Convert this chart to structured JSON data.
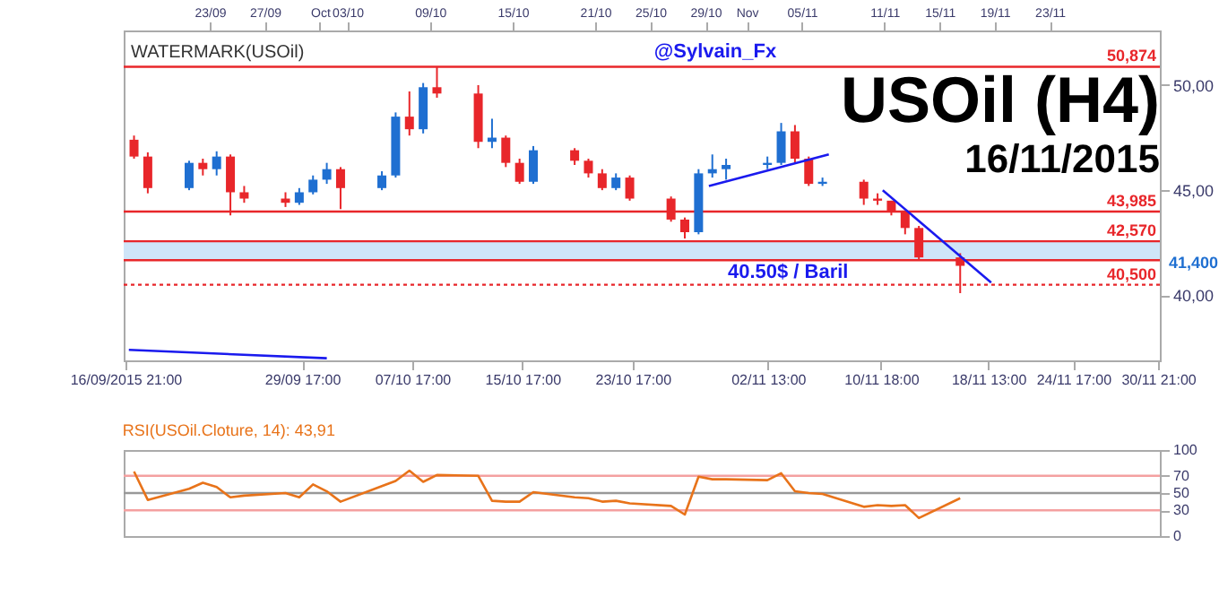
{
  "chart_data": [
    {
      "type": "candlestick",
      "title": "USOil (H4)",
      "subtitle": "16/11/2015",
      "annotations": [
        "WATERMARK(USOil)",
        "@Sylvain_Fx",
        "41,400",
        {
          "text": "40.50$ / Baril",
          "x": "2015-11-04T00:00",
          "y": 40.5
        }
      ],
      "x": [
        "2015-09-17T12:00",
        "2015-09-18T12:00",
        "2015-09-21T12:00",
        "2015-09-22T12:00",
        "2015-09-23T12:00",
        "2015-09-24T12:00",
        "2015-09-25T12:00",
        "2015-09-28T12:00",
        "2015-09-29T12:00",
        "2015-09-30T12:00",
        "2015-10-01T12:00",
        "2015-10-02T12:00",
        "2015-10-05T12:00",
        "2015-10-06T12:00",
        "2015-10-07T12:00",
        "2015-10-08T12:00",
        "2015-10-09T12:00",
        "2015-10-12T12:00",
        "2015-10-13T12:00",
        "2015-10-14T12:00",
        "2015-10-15T12:00",
        "2015-10-16T12:00",
        "2015-10-19T12:00",
        "2015-10-20T12:00",
        "2015-10-21T12:00",
        "2015-10-22T12:00",
        "2015-10-23T12:00",
        "2015-10-26T12:00",
        "2015-10-27T12:00",
        "2015-10-28T12:00",
        "2015-10-29T12:00",
        "2015-10-30T12:00",
        "2015-11-02T12:00",
        "2015-11-03T12:00",
        "2015-11-04T12:00",
        "2015-11-05T12:00",
        "2015-11-06T12:00",
        "2015-11-09T12:00",
        "2015-11-10T12:00",
        "2015-11-11T12:00",
        "2015-11-12T12:00",
        "2015-11-13T12:00",
        "2015-11-16T12:00"
      ],
      "ohlc": [
        [
          47.4,
          47.6,
          46.5,
          46.6
        ],
        [
          46.6,
          46.8,
          44.85,
          45.1
        ],
        [
          45.1,
          46.4,
          45.0,
          46.3
        ],
        [
          46.3,
          46.5,
          45.7,
          46.0
        ],
        [
          46.0,
          46.85,
          45.7,
          46.6
        ],
        [
          46.6,
          46.7,
          43.8,
          44.9
        ],
        [
          44.9,
          45.2,
          44.4,
          44.6
        ],
        [
          44.6,
          44.9,
          44.2,
          44.4
        ],
        [
          44.4,
          45.1,
          44.3,
          44.9
        ],
        [
          44.9,
          45.7,
          44.8,
          45.5
        ],
        [
          45.5,
          46.3,
          45.3,
          46.0
        ],
        [
          46.0,
          46.1,
          44.1,
          45.1
        ],
        [
          45.1,
          45.9,
          45.0,
          45.7
        ],
        [
          45.7,
          48.7,
          45.6,
          48.5
        ],
        [
          48.5,
          49.7,
          47.6,
          47.9
        ],
        [
          47.9,
          50.1,
          47.7,
          49.9
        ],
        [
          49.9,
          50.87,
          49.4,
          49.6
        ],
        [
          49.6,
          50.0,
          47.0,
          47.3
        ],
        [
          47.3,
          48.4,
          47.0,
          47.5
        ],
        [
          47.5,
          47.6,
          46.1,
          46.3
        ],
        [
          46.3,
          46.5,
          45.3,
          45.4
        ],
        [
          45.4,
          47.1,
          45.3,
          46.9
        ],
        [
          46.9,
          47.0,
          46.2,
          46.4
        ],
        [
          46.4,
          46.5,
          45.6,
          45.8
        ],
        [
          45.8,
          46.0,
          45.0,
          45.1
        ],
        [
          45.1,
          45.8,
          45.0,
          45.6
        ],
        [
          45.6,
          45.7,
          44.5,
          44.6
        ],
        [
          44.6,
          44.7,
          43.5,
          43.6
        ],
        [
          43.6,
          43.7,
          42.7,
          43.0
        ],
        [
          43.0,
          46.0,
          42.9,
          45.8
        ],
        [
          45.8,
          46.7,
          45.6,
          46.0
        ],
        [
          46.0,
          46.5,
          45.5,
          46.2
        ],
        [
          46.2,
          46.6,
          46.0,
          46.3
        ],
        [
          46.3,
          48.2,
          46.2,
          47.8
        ],
        [
          47.8,
          48.1,
          46.3,
          46.5
        ],
        [
          46.5,
          46.6,
          45.2,
          45.3
        ],
        [
          45.3,
          45.6,
          45.2,
          45.4
        ],
        [
          45.4,
          45.5,
          44.3,
          44.6
        ],
        [
          44.6,
          44.85,
          44.3,
          44.5
        ],
        [
          44.5,
          44.5,
          43.8,
          44.0
        ],
        [
          44.0,
          44.0,
          42.9,
          43.2
        ],
        [
          43.2,
          43.3,
          41.7,
          41.8
        ],
        [
          41.8,
          42.0,
          40.1,
          41.4
        ]
      ],
      "series": [
        {
          "type": "line",
          "color": "#1a1aee",
          "x": [
            "2015-10-29T06:00",
            "2015-11-06T23:00"
          ],
          "values": [
            45.2,
            46.7
          ]
        },
        {
          "type": "line",
          "color": "#1a1aee",
          "x": [
            "2015-11-10T21:00",
            "2015-11-18T18:00"
          ],
          "values": [
            45.0,
            40.6
          ]
        },
        {
          "type": "line",
          "color": "#1a1aee",
          "x": [
            "2015-09-17T03:00",
            "2015-10-01T12:00"
          ],
          "values": [
            37.4,
            37.0
          ]
        }
      ],
      "xlim": [
        "2015-09-16T18:00",
        "2015-12-01T00:00"
      ],
      "xticks": [
        {
          "value": "2015-09-16T21:00",
          "label": "16/09/2015 21:00"
        },
        {
          "value": "2015-09-29T17:00",
          "label": "29/09 17:00"
        },
        {
          "value": "2015-10-07T17:00",
          "label": "07/10 17:00"
        },
        {
          "value": "2015-10-15T17:00",
          "label": "15/10 17:00"
        },
        {
          "value": "2015-10-23T17:00",
          "label": "23/10 17:00"
        },
        {
          "value": "2015-11-02T13:00",
          "label": "02/11 13:00"
        },
        {
          "value": "2015-11-10T18:00",
          "label": "10/11 18:00"
        },
        {
          "value": "2015-11-18T13:00",
          "label": "18/11 13:00"
        },
        {
          "value": "2015-11-24T17:00",
          "label": "24/11 17:00"
        },
        {
          "value": "2015-11-30T21:00",
          "label": "30/11 21:00"
        }
      ],
      "x2lim": [
        "2015-09-16T18:00",
        "2015-12-01T00:00"
      ],
      "x2ticks": [
        {
          "value": "2015-09-23T00:00",
          "label": "23/09"
        },
        {
          "value": "2015-09-27T00:00",
          "label": "27/09"
        },
        {
          "value": "2015-10-01T00:00",
          "label": "Oct"
        },
        {
          "value": "2015-10-03T00:00",
          "label": "03/10"
        },
        {
          "value": "2015-10-09T00:00",
          "label": "09/10"
        },
        {
          "value": "2015-10-15T00:00",
          "label": "15/10"
        },
        {
          "value": "2015-10-21T00:00",
          "label": "21/10"
        },
        {
          "value": "2015-10-25T00:00",
          "label": "25/10"
        },
        {
          "value": "2015-10-29T00:00",
          "label": "29/10"
        },
        {
          "value": "2015-11-01T00:00",
          "label": "Nov"
        },
        {
          "value": "2015-11-05T00:00",
          "label": "05/11"
        },
        {
          "value": "2015-11-11T00:00",
          "label": "11/11"
        },
        {
          "value": "2015-11-15T00:00",
          "label": "15/11"
        },
        {
          "value": "2015-11-19T00:00",
          "label": "19/11"
        },
        {
          "value": "2015-11-23T00:00",
          "label": "23/11"
        }
      ],
      "ylim": [
        36.9,
        52.6
      ],
      "yticks": [
        {
          "value": 40,
          "label": "40,00"
        },
        {
          "value": 45,
          "label": "45,00"
        },
        {
          "value": 50,
          "label": "50,00"
        }
      ],
      "ref_lines": [
        {
          "axis": "y",
          "value": 50.874,
          "label": "50,874",
          "color": "#e8262a"
        },
        {
          "axis": "y",
          "value": 43.985,
          "label": "43,985",
          "color": "#e8262a"
        },
        {
          "axis": "y",
          "value": 42.57,
          "label": "42,570",
          "color": "#e8262a"
        },
        {
          "axis": "y",
          "value": 41.67,
          "label": null,
          "color": "#e8262a"
        },
        {
          "axis": "y",
          "value": 40.5,
          "label": "40,500",
          "color": "#e8262a",
          "line_style": "dotted"
        }
      ],
      "bands": [
        {
          "axis": "y",
          "from": 41.67,
          "to": 42.57,
          "label": null,
          "color": "#cfe5f8"
        }
      ]
    },
    {
      "type": "line",
      "title": "RSI(USOil.Cloture, 14): 43,91",
      "tick_labels": "y",
      "x": [
        "2015-09-17T12:00",
        "2015-09-18T12:00",
        "2015-09-21T12:00",
        "2015-09-22T12:00",
        "2015-09-23T12:00",
        "2015-09-24T12:00",
        "2015-09-25T12:00",
        "2015-09-28T12:00",
        "2015-09-29T12:00",
        "2015-09-30T12:00",
        "2015-10-01T12:00",
        "2015-10-02T12:00",
        "2015-10-05T12:00",
        "2015-10-06T12:00",
        "2015-10-07T12:00",
        "2015-10-08T12:00",
        "2015-10-09T12:00",
        "2015-10-12T12:00",
        "2015-10-13T12:00",
        "2015-10-14T12:00",
        "2015-10-15T12:00",
        "2015-10-16T12:00",
        "2015-10-19T12:00",
        "2015-10-20T12:00",
        "2015-10-21T12:00",
        "2015-10-22T12:00",
        "2015-10-23T12:00",
        "2015-10-26T12:00",
        "2015-10-27T12:00",
        "2015-10-28T12:00",
        "2015-10-29T12:00",
        "2015-10-30T12:00",
        "2015-11-02T12:00",
        "2015-11-03T12:00",
        "2015-11-04T12:00",
        "2015-11-05T12:00",
        "2015-11-06T12:00",
        "2015-11-09T12:00",
        "2015-11-10T12:00",
        "2015-11-11T12:00",
        "2015-11-12T12:00",
        "2015-11-13T12:00",
        "2015-11-16T12:00"
      ],
      "series": [
        {
          "color": "#e8731a",
          "values": [
            75,
            42,
            55,
            62,
            57,
            45,
            47,
            50,
            45,
            60,
            52,
            40,
            58,
            64,
            76,
            63,
            71,
            70,
            41,
            40,
            40,
            51,
            45,
            44,
            40,
            41,
            38,
            35,
            25,
            69,
            66,
            66,
            65,
            73,
            52,
            50,
            49,
            34,
            36,
            35,
            36,
            21,
            44
          ]
        }
      ],
      "xlim": [
        "2015-09-16T18:00",
        "2015-12-01T00:00"
      ],
      "ylim": [
        0,
        100
      ],
      "yticks": [
        0,
        30,
        50,
        70,
        100
      ],
      "ref_lines": [
        {
          "axis": "y",
          "value": 30,
          "label": null,
          "color": "#f4a0a0"
        },
        {
          "axis": "y",
          "value": 50,
          "label": null,
          "color": "#999999"
        },
        {
          "axis": "y",
          "value": 70,
          "label": null,
          "color": "#f4a0a0"
        }
      ]
    }
  ]
}
